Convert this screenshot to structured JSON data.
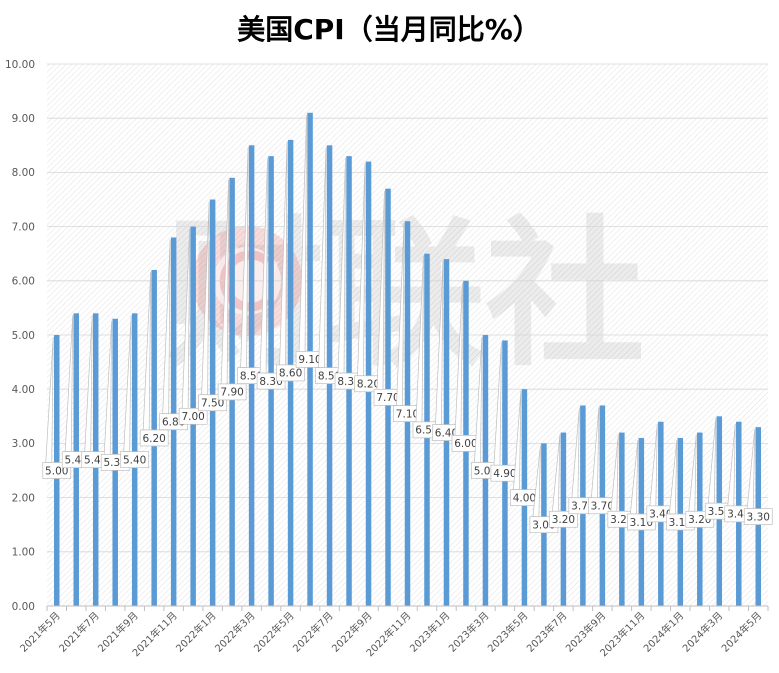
{
  "watermark": {
    "text": "财联社",
    "logo_color": "#e06666"
  },
  "chart_data": {
    "type": "bar",
    "title": "美国CPI（当月同比%）",
    "xlabel": "",
    "ylabel": "",
    "categories": [
      "2021年5月",
      "",
      "2021年7月",
      "",
      "2021年9月",
      "",
      "2021年11月",
      "",
      "2022年1月",
      "",
      "2022年3月",
      "",
      "2022年5月",
      "",
      "2022年7月",
      "",
      "2022年9月",
      "",
      "2022年11月",
      "",
      "2023年1月",
      "",
      "2023年3月",
      "",
      "2023年5月",
      "",
      "2023年7月",
      "",
      "2023年9月",
      "",
      "2023年11月",
      "",
      "2024年1月",
      "",
      "2024年3月",
      "",
      "2024年5月"
    ],
    "values": [
      5.0,
      5.4,
      5.4,
      5.3,
      5.4,
      6.2,
      6.8,
      7.0,
      7.5,
      7.9,
      8.5,
      8.3,
      8.6,
      9.1,
      8.5,
      8.3,
      8.2,
      7.7,
      7.1,
      6.5,
      6.4,
      6.0,
      5.0,
      4.9,
      4.0,
      3.0,
      3.2,
      3.7,
      3.7,
      3.2,
      3.1,
      3.4,
      3.1,
      3.2,
      3.5,
      3.4,
      3.3
    ],
    "data_labels": [
      "5.00",
      "5.40",
      "5.40",
      "5.30",
      "5.40",
      "6.20",
      "6.80",
      "7.00",
      "7.50",
      "7.90",
      "8.50",
      "8.30",
      "8.60",
      "9.10",
      "8.50",
      "8.30",
      "8.20",
      "7.70",
      "7.10",
      "6.50",
      "6.40",
      "6.00",
      "5.00",
      "4.90",
      "4.00",
      "3.00",
      "3.20",
      "3.70",
      "3.70",
      "3.20",
      "3.10",
      "3.40",
      "3.10",
      "3.20",
      "3.50",
      "3.40",
      "3.30"
    ],
    "y_ticks": [
      "0.00",
      "1.00",
      "2.00",
      "3.00",
      "4.00",
      "5.00",
      "6.00",
      "7.00",
      "8.00",
      "9.00",
      "10.00"
    ],
    "ylim": [
      0,
      10
    ],
    "grid": true,
    "bar_color": "#5B9BD5"
  }
}
